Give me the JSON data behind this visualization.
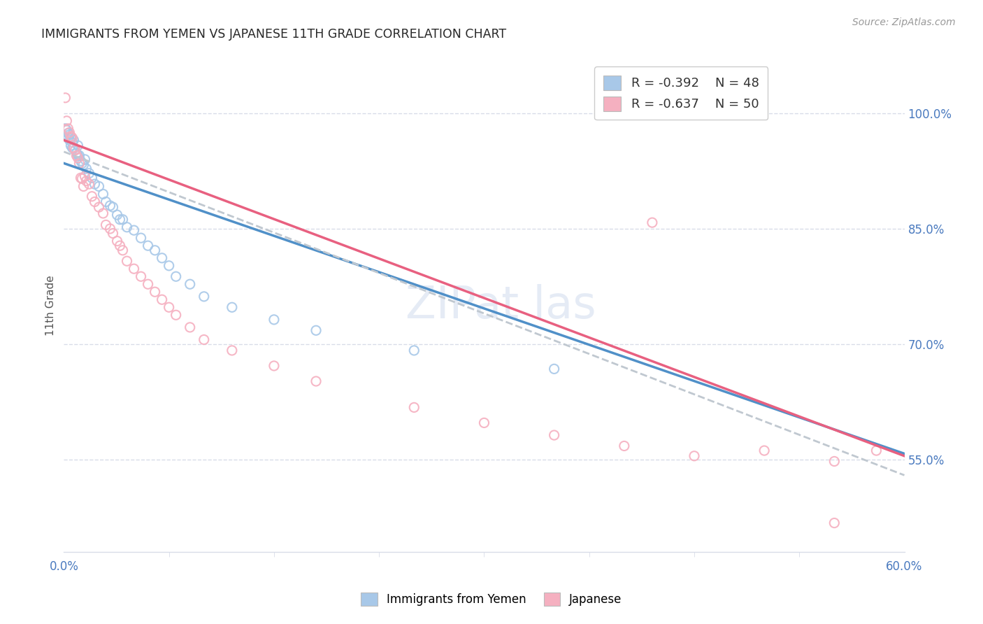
{
  "title": "IMMIGRANTS FROM YEMEN VS JAPANESE 11TH GRADE CORRELATION CHART",
  "source": "Source: ZipAtlas.com",
  "ylabel": "11th Grade",
  "xmin": 0.0,
  "xmax": 0.6,
  "ymin": 0.43,
  "ymax": 1.07,
  "legend_r1": "R = -0.392",
  "legend_n1": "N = 48",
  "legend_r2": "R = -0.637",
  "legend_n2": "N = 50",
  "blue_color": "#a8c8e8",
  "pink_color": "#f5b0c0",
  "blue_line_color": "#5090c8",
  "pink_line_color": "#e86080",
  "dashed_line_color": "#c0c8d0",
  "grid_color": "#d8dce8",
  "title_color": "#282828",
  "axis_label_color": "#4a7abf",
  "right_ytick_positions": [
    0.55,
    0.7,
    0.85,
    1.0
  ],
  "blue_trendline": [
    [
      0.0,
      0.935
    ],
    [
      0.6,
      0.558
    ]
  ],
  "pink_trendline": [
    [
      0.0,
      0.965
    ],
    [
      0.6,
      0.555
    ]
  ],
  "dashed_trendline": [
    [
      0.0,
      0.95
    ],
    [
      0.6,
      0.53
    ]
  ],
  "blue_scatter": [
    [
      0.001,
      0.98
    ],
    [
      0.002,
      0.978
    ],
    [
      0.003,
      0.974
    ],
    [
      0.003,
      0.968
    ],
    [
      0.004,
      0.972
    ],
    [
      0.004,
      0.965
    ],
    [
      0.005,
      0.968
    ],
    [
      0.005,
      0.958
    ],
    [
      0.006,
      0.962
    ],
    [
      0.006,
      0.955
    ],
    [
      0.007,
      0.965
    ],
    [
      0.007,
      0.955
    ],
    [
      0.008,
      0.952
    ],
    [
      0.009,
      0.948
    ],
    [
      0.01,
      0.958
    ],
    [
      0.01,
      0.945
    ],
    [
      0.011,
      0.945
    ],
    [
      0.012,
      0.938
    ],
    [
      0.013,
      0.935
    ],
    [
      0.014,
      0.933
    ],
    [
      0.015,
      0.94
    ],
    [
      0.016,
      0.928
    ],
    [
      0.018,
      0.922
    ],
    [
      0.02,
      0.916
    ],
    [
      0.022,
      0.908
    ],
    [
      0.025,
      0.905
    ],
    [
      0.028,
      0.895
    ],
    [
      0.03,
      0.885
    ],
    [
      0.033,
      0.88
    ],
    [
      0.035,
      0.878
    ],
    [
      0.038,
      0.868
    ],
    [
      0.04,
      0.862
    ],
    [
      0.042,
      0.862
    ],
    [
      0.045,
      0.852
    ],
    [
      0.05,
      0.848
    ],
    [
      0.055,
      0.838
    ],
    [
      0.06,
      0.828
    ],
    [
      0.065,
      0.822
    ],
    [
      0.07,
      0.812
    ],
    [
      0.075,
      0.802
    ],
    [
      0.08,
      0.788
    ],
    [
      0.09,
      0.778
    ],
    [
      0.1,
      0.762
    ],
    [
      0.12,
      0.748
    ],
    [
      0.15,
      0.732
    ],
    [
      0.18,
      0.718
    ],
    [
      0.25,
      0.692
    ],
    [
      0.35,
      0.668
    ]
  ],
  "pink_scatter": [
    [
      0.001,
      1.02
    ],
    [
      0.002,
      0.99
    ],
    [
      0.003,
      0.98
    ],
    [
      0.004,
      0.975
    ],
    [
      0.005,
      0.97
    ],
    [
      0.006,
      0.968
    ],
    [
      0.007,
      0.955
    ],
    [
      0.008,
      0.952
    ],
    [
      0.009,
      0.945
    ],
    [
      0.01,
      0.942
    ],
    [
      0.011,
      0.935
    ],
    [
      0.012,
      0.916
    ],
    [
      0.013,
      0.915
    ],
    [
      0.014,
      0.905
    ],
    [
      0.015,
      0.918
    ],
    [
      0.016,
      0.912
    ],
    [
      0.018,
      0.908
    ],
    [
      0.02,
      0.892
    ],
    [
      0.022,
      0.885
    ],
    [
      0.025,
      0.878
    ],
    [
      0.028,
      0.87
    ],
    [
      0.03,
      0.855
    ],
    [
      0.033,
      0.85
    ],
    [
      0.035,
      0.844
    ],
    [
      0.038,
      0.834
    ],
    [
      0.04,
      0.828
    ],
    [
      0.042,
      0.822
    ],
    [
      0.045,
      0.808
    ],
    [
      0.05,
      0.798
    ],
    [
      0.055,
      0.788
    ],
    [
      0.06,
      0.778
    ],
    [
      0.065,
      0.768
    ],
    [
      0.07,
      0.758
    ],
    [
      0.075,
      0.748
    ],
    [
      0.08,
      0.738
    ],
    [
      0.09,
      0.722
    ],
    [
      0.1,
      0.706
    ],
    [
      0.12,
      0.692
    ],
    [
      0.15,
      0.672
    ],
    [
      0.18,
      0.652
    ],
    [
      0.25,
      0.618
    ],
    [
      0.3,
      0.598
    ],
    [
      0.35,
      0.582
    ],
    [
      0.4,
      0.568
    ],
    [
      0.45,
      0.555
    ],
    [
      0.5,
      0.562
    ],
    [
      0.55,
      0.548
    ],
    [
      0.42,
      0.858
    ],
    [
      0.58,
      0.562
    ],
    [
      0.55,
      0.468
    ]
  ]
}
